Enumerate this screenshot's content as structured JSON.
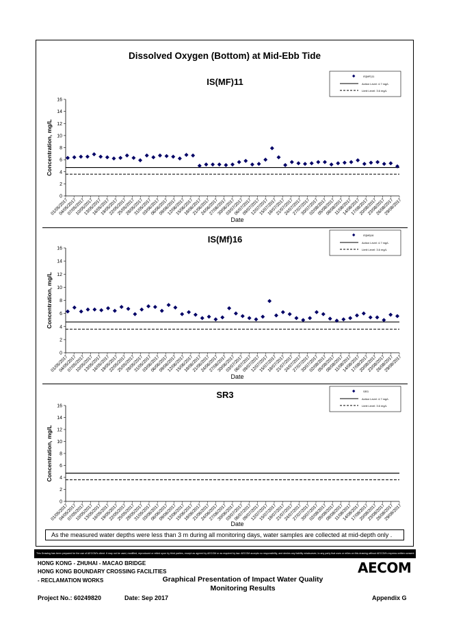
{
  "title": "Dissolved Oxygen (Bottom) at Mid-Ebb Tide",
  "note": "As the measured water depths were less than 3 m during all monitoring days, water samples are collected  at mid-depth only .",
  "disclaimer": "This Drawing has been prepared for the use of AECOM's client. It may not be used, modified, reproduced or relied upon by third parties, except as agreed by AECOM or as required by law. AECOM accepts no responsibility, and denies any liability whatsoever, to any party that uses or relies on this drawing without AECOM's express written consent.",
  "footer": {
    "line1": "HONG KONG - ZHUHAI - MACAO BRIDGE",
    "line2": "HONG KONG BOUNDARY CROSSING FACILITIES",
    "line3": "- RECLAMATION WORKS",
    "title_line1": "Graphical Presentation of Impact Water Quality",
    "title_line2": "Monitoring Results",
    "project": "Project No.: 60249820",
    "date": "Date: Sep 2017",
    "appendix": "Appendix G",
    "logo": "AECOM"
  },
  "colors": {
    "marker": "#000066",
    "line": "#000000"
  },
  "chart_data": [
    {
      "type": "scatter",
      "title": "IS(MF)11",
      "xlabel": "Date",
      "ylabel": "Concentration, mg/L",
      "ylim": [
        0,
        16
      ],
      "yticks": [
        0,
        2,
        4,
        6,
        8,
        10,
        12,
        14,
        16
      ],
      "xticks": [
        "01/05/2017",
        "04/05/2017",
        "07/05/2017",
        "10/05/2017",
        "13/05/2017",
        "16/05/2017",
        "19/05/2017",
        "22/05/2017",
        "25/05/2017",
        "28/05/2017",
        "31/05/2017",
        "03/06/2017",
        "06/06/2017",
        "09/06/2017",
        "12/06/2017",
        "15/06/2017",
        "18/06/2017",
        "21/06/2017",
        "24/06/2017",
        "27/06/2017",
        "30/06/2017",
        "03/07/2017",
        "06/07/2017",
        "09/07/2017",
        "12/07/2017",
        "15/07/2017",
        "18/07/2017",
        "21/07/2017",
        "24/07/2017",
        "27/07/2017",
        "30/07/2017",
        "02/08/2017",
        "05/08/2017",
        "08/08/2017",
        "11/08/2017",
        "14/08/2017",
        "17/08/2017",
        "20/08/2017",
        "23/08/2017",
        "26/08/2017",
        "29/08/2017"
      ],
      "legend": [
        "IS(MF)11",
        "Action Level: 4.7 mg/L",
        "Limit Level: 3.6 mg/L"
      ],
      "action_level": 4.7,
      "limit_level": 3.6,
      "points": [
        [
          0,
          6.3
        ],
        [
          1,
          6.4
        ],
        [
          2,
          6.5
        ],
        [
          3,
          6.5
        ],
        [
          4,
          6.9
        ],
        [
          5,
          6.5
        ],
        [
          6,
          6.4
        ],
        [
          7,
          6.2
        ],
        [
          8,
          6.3
        ],
        [
          9,
          6.7
        ],
        [
          10,
          6.3
        ],
        [
          11,
          5.9
        ],
        [
          12,
          6.7
        ],
        [
          13,
          6.4
        ],
        [
          14,
          6.7
        ],
        [
          15,
          6.6
        ],
        [
          16,
          6.5
        ],
        [
          17,
          6.2
        ],
        [
          18,
          6.8
        ],
        [
          19,
          6.7
        ],
        [
          20,
          5.0
        ],
        [
          21,
          5.2
        ],
        [
          22,
          5.2
        ],
        [
          23,
          5.2
        ],
        [
          24,
          5.1
        ],
        [
          25,
          5.2
        ],
        [
          26,
          5.6
        ],
        [
          27,
          5.8
        ],
        [
          28,
          5.2
        ],
        [
          29,
          5.3
        ],
        [
          30,
          6.0
        ],
        [
          31,
          7.9
        ],
        [
          32,
          6.4
        ],
        [
          33,
          5.1
        ],
        [
          34,
          5.6
        ],
        [
          35,
          5.4
        ],
        [
          36,
          5.3
        ],
        [
          37,
          5.4
        ],
        [
          38,
          5.6
        ],
        [
          39,
          5.6
        ],
        [
          40,
          5.2
        ],
        [
          41,
          5.4
        ],
        [
          42,
          5.5
        ],
        [
          43,
          5.6
        ],
        [
          44,
          5.9
        ],
        [
          45,
          5.3
        ],
        [
          46,
          5.5
        ],
        [
          47,
          5.6
        ],
        [
          48,
          5.3
        ],
        [
          49,
          5.4
        ],
        [
          50,
          4.9
        ]
      ]
    },
    {
      "type": "scatter",
      "title": "IS(Mf)16",
      "xlabel": "Date",
      "ylabel": "Concentration, mg/L",
      "ylim": [
        0,
        16
      ],
      "yticks": [
        0,
        2,
        4,
        6,
        8,
        10,
        12,
        14,
        16
      ],
      "xticks": [
        "01/05/2017",
        "04/05/2017",
        "07/05/2017",
        "10/05/2017",
        "13/05/2017",
        "16/05/2017",
        "19/05/2017",
        "22/05/2017",
        "25/05/2017",
        "28/05/2017",
        "31/05/2017",
        "03/06/2017",
        "06/06/2017",
        "09/06/2017",
        "12/06/2017",
        "15/06/2017",
        "18/06/2017",
        "21/06/2017",
        "24/06/2017",
        "27/06/2017",
        "30/06/2017",
        "03/07/2017",
        "06/07/2017",
        "09/07/2017",
        "12/07/2017",
        "15/07/2017",
        "18/07/2017",
        "21/07/2017",
        "24/07/2017",
        "27/07/2017",
        "30/07/2017",
        "02/08/2017",
        "05/08/2017",
        "08/08/2017",
        "11/08/2017",
        "14/08/2017",
        "17/08/2017",
        "20/08/2017",
        "23/08/2017",
        "26/08/2017",
        "29/08/2017"
      ],
      "legend": [
        "IS(Mf)16",
        "Action Level: 4.7 mg/L",
        "Limit Level: 3.6 mg/L"
      ],
      "action_level": 4.7,
      "limit_level": 3.6,
      "points": [
        [
          0,
          6.3
        ],
        [
          1,
          6.9
        ],
        [
          2,
          6.3
        ],
        [
          3,
          6.6
        ],
        [
          4,
          6.6
        ],
        [
          5,
          6.5
        ],
        [
          6,
          6.8
        ],
        [
          7,
          6.4
        ],
        [
          8,
          7.0
        ],
        [
          9,
          6.7
        ],
        [
          10,
          5.9
        ],
        [
          11,
          6.6
        ],
        [
          12,
          7.1
        ],
        [
          13,
          7.0
        ],
        [
          14,
          6.4
        ],
        [
          15,
          7.3
        ],
        [
          16,
          6.9
        ],
        [
          17,
          5.9
        ],
        [
          18,
          6.2
        ],
        [
          19,
          5.8
        ],
        [
          20,
          5.3
        ],
        [
          21,
          5.5
        ],
        [
          22,
          5.1
        ],
        [
          23,
          5.4
        ],
        [
          24,
          6.8
        ],
        [
          25,
          6.0
        ],
        [
          26,
          5.6
        ],
        [
          27,
          5.3
        ],
        [
          28,
          5.1
        ],
        [
          29,
          5.5
        ],
        [
          30,
          7.9
        ],
        [
          31,
          5.7
        ],
        [
          32,
          6.2
        ],
        [
          33,
          5.9
        ],
        [
          34,
          5.3
        ],
        [
          35,
          5.0
        ],
        [
          36,
          5.3
        ],
        [
          37,
          6.2
        ],
        [
          38,
          5.9
        ],
        [
          39,
          5.2
        ],
        [
          40,
          4.9
        ],
        [
          41,
          5.1
        ],
        [
          42,
          5.3
        ],
        [
          43,
          5.7
        ],
        [
          44,
          6.0
        ],
        [
          45,
          5.4
        ],
        [
          46,
          5.4
        ],
        [
          47,
          5.0
        ],
        [
          48,
          5.8
        ],
        [
          49,
          5.6
        ]
      ]
    },
    {
      "type": "scatter",
      "title": "SR3",
      "xlabel": "Date",
      "ylabel": "Concentration, mg/L",
      "ylim": [
        0,
        16
      ],
      "yticks": [
        0,
        2,
        4,
        6,
        8,
        10,
        12,
        14,
        16
      ],
      "xticks": [
        "01/05/2017",
        "04/05/2017",
        "07/05/2017",
        "10/05/2017",
        "13/05/2017",
        "16/05/2017",
        "19/05/2017",
        "22/05/2017",
        "25/05/2017",
        "28/05/2017",
        "31/05/2017",
        "03/06/2017",
        "06/06/2017",
        "09/06/2017",
        "12/06/2017",
        "15/06/2017",
        "18/06/2017",
        "21/06/2017",
        "24/06/2017",
        "27/06/2017",
        "30/06/2017",
        "03/07/2017",
        "06/07/2017",
        "09/07/2017",
        "12/07/2017",
        "15/07/2017",
        "18/07/2017",
        "21/07/2017",
        "24/07/2017",
        "27/07/2017",
        "30/07/2017",
        "02/08/2017",
        "05/08/2017",
        "08/08/2017",
        "11/08/2017",
        "14/08/2017",
        "17/08/2017",
        "20/08/2017",
        "23/08/2017",
        "26/08/2017",
        "29/08/2017"
      ],
      "legend": [
        "SR3",
        "Action Level: 4.7 mg/L",
        "Limit Level: 3.6 mg/L"
      ],
      "action_level": 4.7,
      "limit_level": 3.6,
      "points": []
    }
  ]
}
